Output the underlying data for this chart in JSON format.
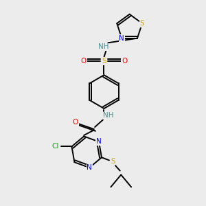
{
  "bg_color": "#ececec",
  "bond_color": "#000000",
  "bond_width": 1.4,
  "atom_colors": {
    "N": "#0000ff",
    "O": "#ff0000",
    "S": "#ccaa00",
    "Cl": "#00aa00",
    "C": "#000000",
    "H": "#4a9090"
  },
  "font_size": 7.5
}
